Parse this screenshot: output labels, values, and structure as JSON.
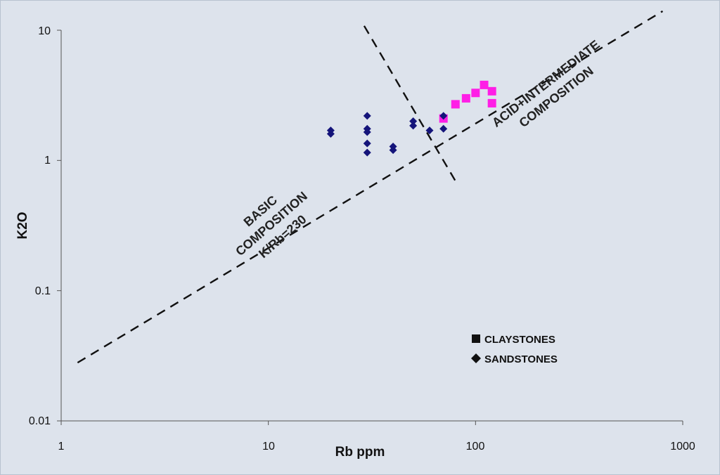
{
  "chart_data": {
    "type": "scatter",
    "title": "",
    "xlabel": "Rb ppm",
    "ylabel": "K2O",
    "x_scale": "log",
    "y_scale": "log",
    "xlim": [
      1,
      1000
    ],
    "ylim": [
      0.01,
      10
    ],
    "x_ticks": [
      "1",
      "10",
      "100",
      "1000"
    ],
    "y_ticks": [
      "0.01",
      "0.1",
      "1",
      "10"
    ],
    "grid": false,
    "legend_position": "lower-right",
    "series": [
      {
        "name": "CLAYSTONES",
        "marker": "square",
        "color": "#ff1ee6",
        "points": [
          {
            "x": 70,
            "y": 2.1
          },
          {
            "x": 80,
            "y": 2.7
          },
          {
            "x": 90,
            "y": 3.0
          },
          {
            "x": 100,
            "y": 3.3
          },
          {
            "x": 110,
            "y": 3.8
          },
          {
            "x": 120,
            "y": 3.4
          },
          {
            "x": 120,
            "y": 2.75
          }
        ]
      },
      {
        "name": "SANDSTONES",
        "marker": "diamond",
        "color": "#14147a",
        "points": [
          {
            "x": 20,
            "y": 1.7
          },
          {
            "x": 20,
            "y": 1.6
          },
          {
            "x": 30,
            "y": 2.2
          },
          {
            "x": 30,
            "y": 1.75
          },
          {
            "x": 30,
            "y": 1.65
          },
          {
            "x": 30,
            "y": 1.35
          },
          {
            "x": 30,
            "y": 1.15
          },
          {
            "x": 40,
            "y": 1.28
          },
          {
            "x": 40,
            "y": 1.2
          },
          {
            "x": 50,
            "y": 2.0
          },
          {
            "x": 50,
            "y": 1.85
          },
          {
            "x": 60,
            "y": 1.7
          },
          {
            "x": 70,
            "y": 2.2
          },
          {
            "x": 70,
            "y": 1.75
          }
        ]
      }
    ],
    "lines": [
      {
        "style": "dashed",
        "from": {
          "x": 1.2,
          "y": 0.028
        },
        "to": {
          "x": 800,
          "y": 14
        }
      },
      {
        "style": "dashed",
        "from": {
          "x": 29,
          "y": 10.8
        },
        "to": {
          "x": 82,
          "y": 0.65
        }
      }
    ],
    "annotations": [
      {
        "lines": [
          "BASIC",
          "COMPOSITION",
          "K/Rb=230"
        ]
      },
      {
        "lines": [
          "ACID+INTERMEDIATE",
          "COMPOSITION"
        ]
      }
    ]
  }
}
